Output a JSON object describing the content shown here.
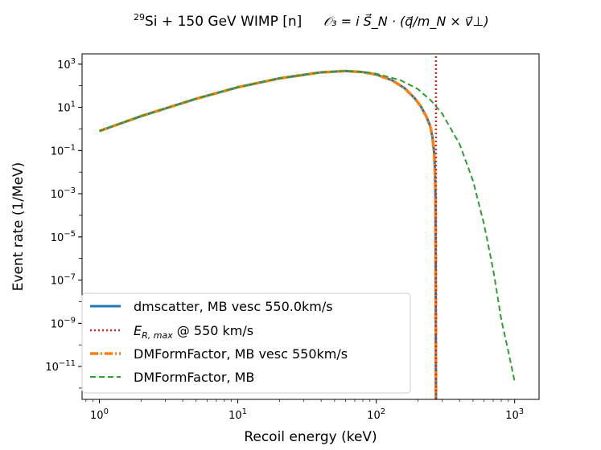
{
  "chart_data": {
    "type": "line",
    "title": {
      "isotope_mass": "29",
      "main": "Si + 150 GeV WIMP [n]",
      "operator": "𝒪₃ = i S⃗_N · (q⃗/m_N × v⃗⊥)"
    },
    "xlabel": "Recoil energy (keV)",
    "ylabel": "Event rate (1/MeV)",
    "x_scale": "log",
    "y_scale": "log",
    "xlim": [
      0.75,
      1500
    ],
    "ylim": [
      3e-13,
      3000
    ],
    "x_ticks": [
      {
        "value": 1,
        "base": "10",
        "exp": "0"
      },
      {
        "value": 10,
        "base": "10",
        "exp": "1"
      },
      {
        "value": 100,
        "base": "10",
        "exp": "2"
      },
      {
        "value": 1000,
        "base": "10",
        "exp": "3"
      }
    ],
    "y_ticks": [
      {
        "value": 1000.0,
        "base": "10",
        "exp": "3"
      },
      {
        "value": 10.0,
        "base": "10",
        "exp": "1"
      },
      {
        "value": 0.1,
        "base": "10",
        "exp": "−1"
      },
      {
        "value": 0.001,
        "base": "10",
        "exp": "−3"
      },
      {
        "value": 1e-05,
        "base": "10",
        "exp": "−5"
      },
      {
        "value": 1e-07,
        "base": "10",
        "exp": "−7"
      },
      {
        "value": 1e-09,
        "base": "10",
        "exp": "−9"
      },
      {
        "value": 1e-11,
        "base": "10",
        "exp": "−11"
      }
    ],
    "legend_position": "lower-left",
    "series": [
      {
        "name": "dmscatter, MB vesc 550.0km/s",
        "color": "#1f77b4",
        "style": "solid",
        "x": [
          1,
          2,
          5,
          10,
          20,
          40,
          60,
          80,
          100,
          130,
          160,
          190,
          210,
          230,
          245,
          255,
          262,
          266,
          268,
          270
        ],
        "y": [
          0.8,
          3.9,
          25,
          85,
          220,
          420,
          480,
          430,
          330,
          180,
          78,
          26,
          11,
          3.8,
          1.4,
          0.4,
          0.08,
          0.01,
          0.0005,
          2e-13
        ]
      },
      {
        "name": "E_R,max @ 550 km/s",
        "label_main": "E",
        "label_sub": "R, max",
        "label_rest": " @ 550 km/s",
        "color": "#d62728",
        "style": "dotted",
        "x": [
          270,
          270
        ],
        "y": [
          3e-13,
          3000
        ]
      },
      {
        "name": "DMFormFactor, MB vesc 550km/s",
        "color": "#ff7f0e",
        "style": "dashdot",
        "x": [
          1,
          2,
          5,
          10,
          20,
          40,
          60,
          80,
          100,
          130,
          160,
          190,
          210,
          230,
          245,
          255,
          262,
          266,
          268,
          270
        ],
        "y": [
          0.8,
          3.9,
          25,
          85,
          220,
          420,
          480,
          430,
          330,
          180,
          78,
          26,
          11,
          3.8,
          1.4,
          0.4,
          0.08,
          0.01,
          0.0005,
          2e-13
        ]
      },
      {
        "name": "DMFormFactor, MB",
        "color": "#2ca02c",
        "style": "dashed",
        "x": [
          1,
          2,
          5,
          10,
          20,
          40,
          60,
          80,
          100,
          150,
          200,
          250,
          300,
          400,
          500,
          600,
          700,
          800,
          900,
          1000
        ],
        "y": [
          0.8,
          3.9,
          25,
          85,
          220,
          420,
          480,
          440,
          360,
          180,
          70,
          20,
          5,
          0.2,
          0.004,
          4e-05,
          3e-07,
          1.5e-09,
          5e-11,
          2e-12
        ]
      }
    ]
  }
}
